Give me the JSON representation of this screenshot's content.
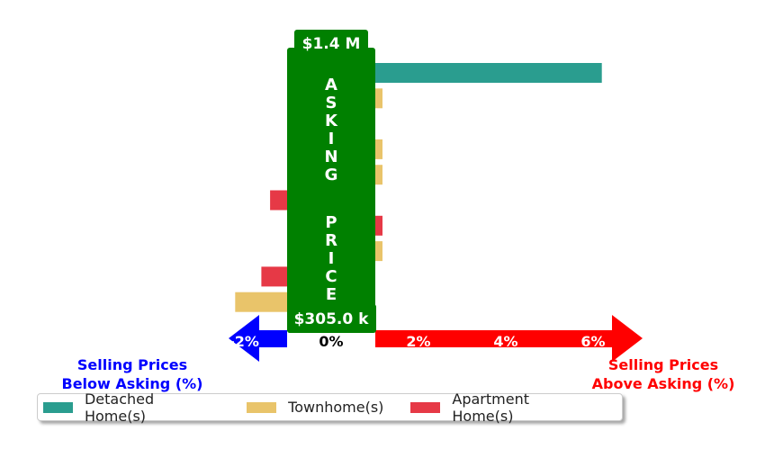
{
  "chart_data": {
    "type": "bar",
    "orientation": "horizontal",
    "x_unit": "Selling price relative to asking (%)",
    "xlim": [
      -3.0,
      6.5
    ],
    "xticks": [
      {
        "value": -2,
        "label": "-2%"
      },
      {
        "value": 0,
        "label": "0%"
      },
      {
        "value": 2,
        "label": "2%"
      },
      {
        "value": 4,
        "label": "4%"
      },
      {
        "value": 6,
        "label": "6%"
      }
    ],
    "bars": [
      {
        "series": "detached",
        "value": 6.2
      },
      {
        "series": "townhome",
        "value": 0.15
      },
      {
        "series": "detached",
        "value": -0.3
      },
      {
        "series": "townhome",
        "value": 0.15
      },
      {
        "series": "townhome",
        "value": 0.15
      },
      {
        "series": "apartment",
        "value": -1.4
      },
      {
        "series": "apartment",
        "value": 0.15
      },
      {
        "series": "townhome",
        "value": 0.15
      },
      {
        "series": "apartment",
        "value": -1.6
      },
      {
        "series": "townhome",
        "value": -2.2
      }
    ],
    "series": [
      {
        "key": "detached",
        "name": "Detached Home(s)",
        "color": "#2a9d8f"
      },
      {
        "key": "townhome",
        "name": "Townhome(s)",
        "color": "#e9c46a"
      },
      {
        "key": "apartment",
        "name": "Apartment Home(s)",
        "color": "#e63946"
      }
    ],
    "asking_price_band": {
      "label": "ASKING PRICE",
      "top_price": "$1.4 M",
      "bottom_price": "$305.0 k",
      "color": "#008000"
    },
    "below_label": [
      "Selling Prices",
      "Below Asking (%)"
    ],
    "below_color": "#0000ff",
    "above_label": [
      "Selling Prices",
      "Above Asking (%)"
    ],
    "above_color": "#ff0000",
    "legend_position": "bottom-left"
  }
}
